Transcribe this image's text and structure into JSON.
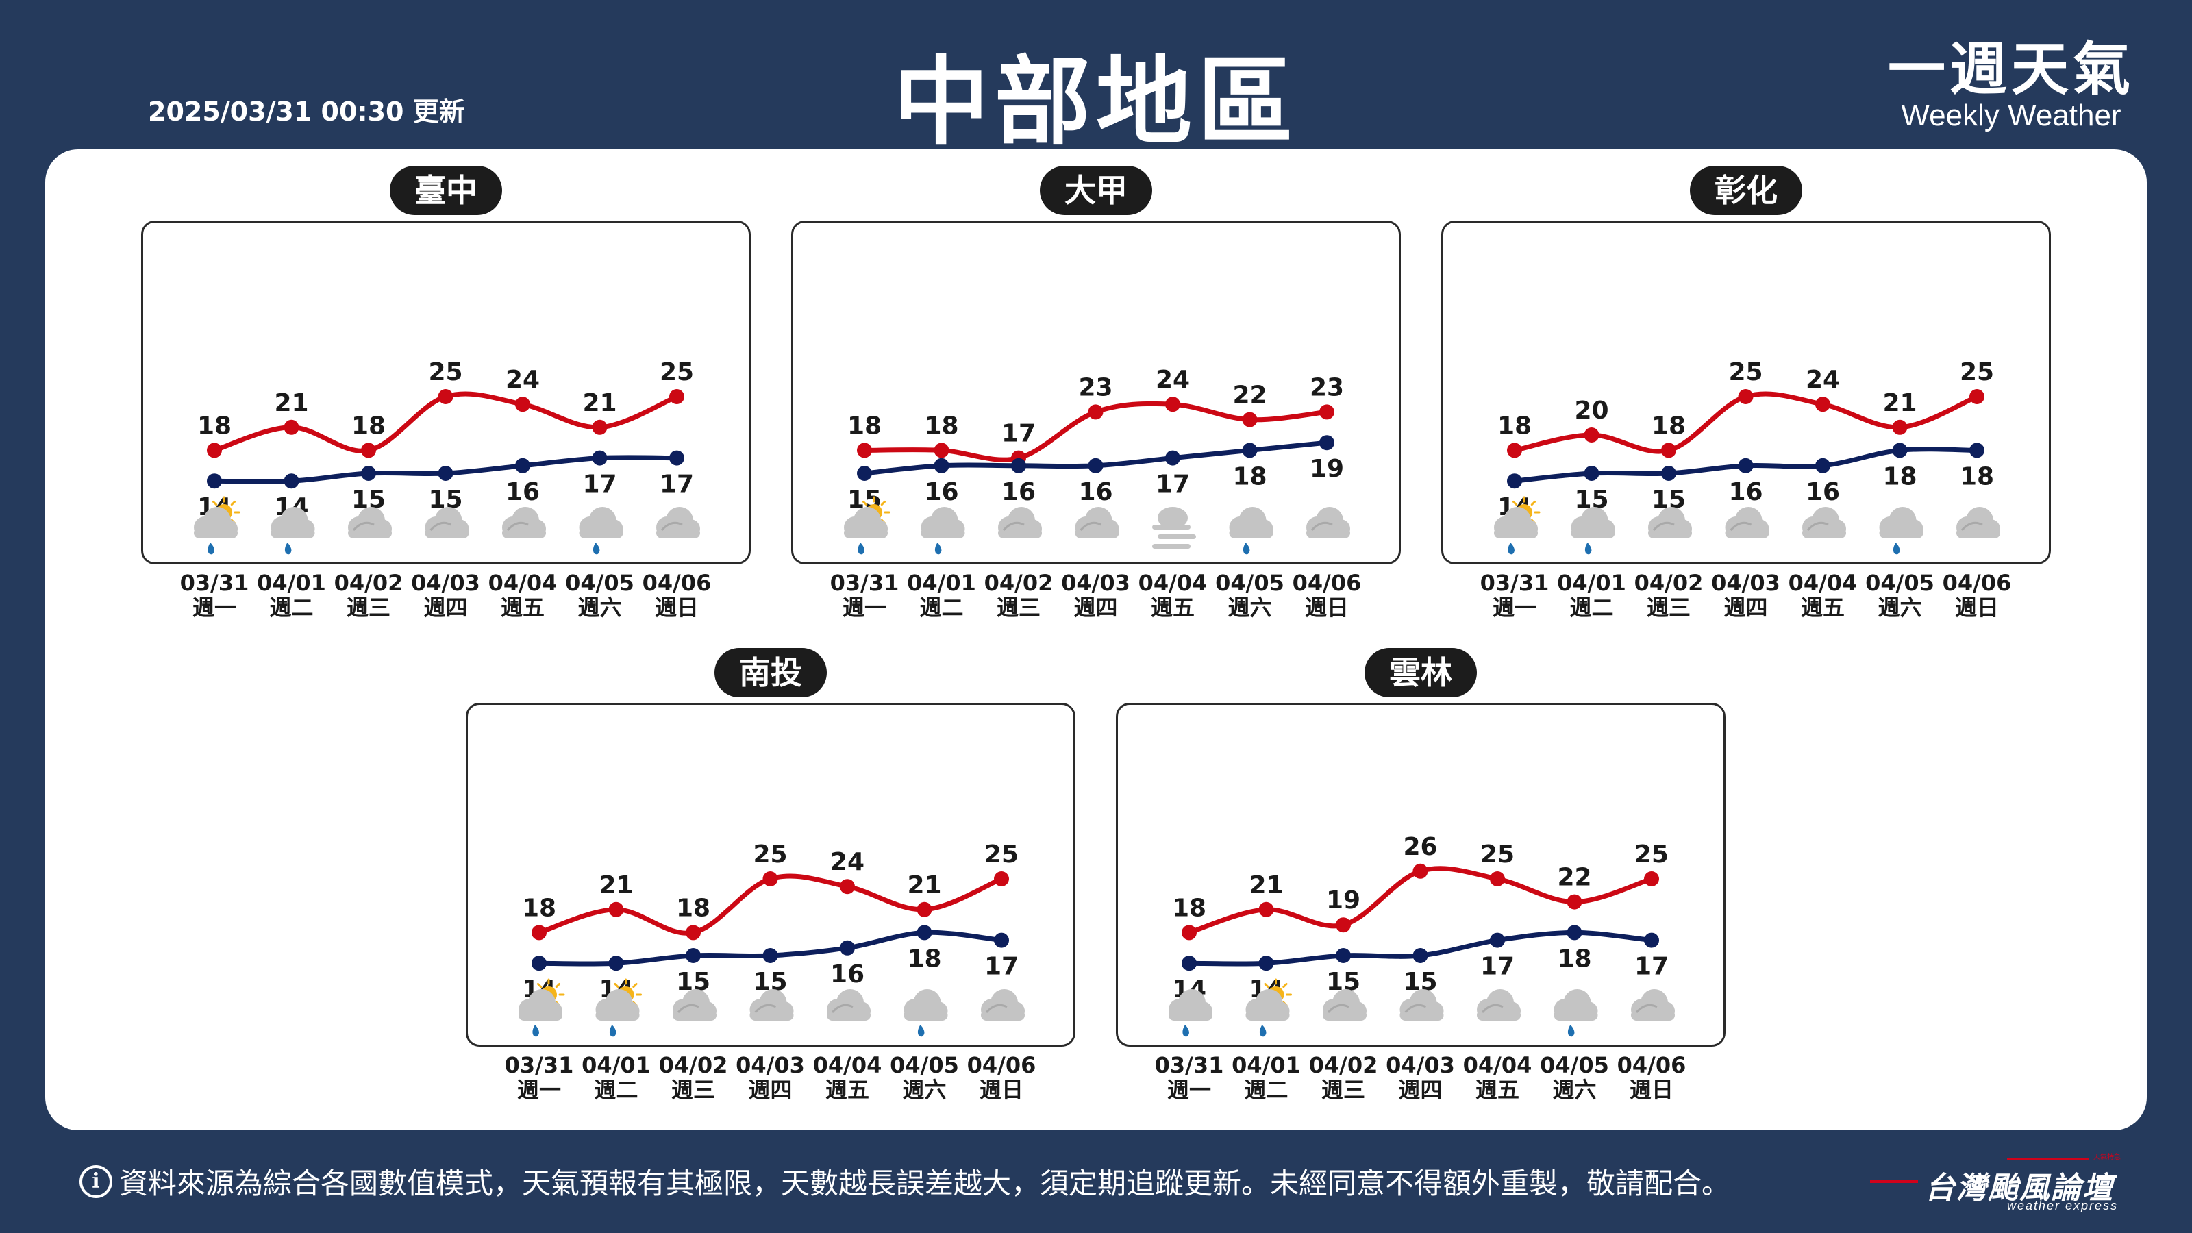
{
  "header": {
    "update_time": "2025/03/31 00:30 更新",
    "title": "中部地區",
    "brand_cn": "一週天氣",
    "brand_en": "Weekly Weather"
  },
  "footer": {
    "info_icon": "i",
    "note": "資料來源為綜合各國數值模式，天氣預報有其極限，天數越長誤差越大，須定期追蹤更新。未經同意不得額外重製，敬請配合。",
    "logo_cn": "台灣颱風論壇",
    "logo_en": "weather express",
    "logo_tag": "天氣特急"
  },
  "colors": {
    "background": "#253a5c",
    "high": "#cc0814",
    "low": "#0d1f5c",
    "label": "#1a1a1a",
    "cloud": "#c4c4c4",
    "sun": "#f5b41a",
    "rain": "#1e6fb0"
  },
  "chart_data": [
    {
      "type": "line",
      "title": "臺中",
      "dates": [
        "03/31",
        "04/01",
        "04/02",
        "04/03",
        "04/04",
        "04/05",
        "04/06"
      ],
      "weekdays": [
        "週一",
        "週二",
        "週三",
        "週四",
        "週五",
        "週六",
        "週日"
      ],
      "series": [
        {
          "values": [
            18,
            21,
            18,
            25,
            24,
            21,
            25
          ]
        },
        {
          "values": [
            14,
            14,
            15,
            15,
            16,
            17,
            17
          ]
        }
      ],
      "icons": [
        "partly-sunny-rain",
        "cloud-rain",
        "cloudy",
        "cloudy",
        "cloudy",
        "cloud-rain",
        "cloudy"
      ]
    },
    {
      "type": "line",
      "title": "大甲",
      "dates": [
        "03/31",
        "04/01",
        "04/02",
        "04/03",
        "04/04",
        "04/05",
        "04/06"
      ],
      "weekdays": [
        "週一",
        "週二",
        "週三",
        "週四",
        "週五",
        "週六",
        "週日"
      ],
      "series": [
        {
          "values": [
            18,
            18,
            17,
            23,
            24,
            22,
            23
          ]
        },
        {
          "values": [
            15,
            16,
            16,
            16,
            17,
            18,
            19
          ]
        }
      ],
      "icons": [
        "partly-sunny-rain",
        "cloud-rain",
        "cloudy",
        "cloudy",
        "fog",
        "cloud-rain",
        "cloudy"
      ]
    },
    {
      "type": "line",
      "title": "彰化",
      "dates": [
        "03/31",
        "04/01",
        "04/02",
        "04/03",
        "04/04",
        "04/05",
        "04/06"
      ],
      "weekdays": [
        "週一",
        "週二",
        "週三",
        "週四",
        "週五",
        "週六",
        "週日"
      ],
      "series": [
        {
          "values": [
            18,
            20,
            18,
            25,
            24,
            21,
            25
          ]
        },
        {
          "values": [
            14,
            15,
            15,
            16,
            16,
            18,
            18
          ]
        }
      ],
      "icons": [
        "partly-sunny-rain",
        "cloud-rain",
        "cloudy",
        "cloudy",
        "cloudy",
        "cloud-rain",
        "cloudy"
      ]
    },
    {
      "type": "line",
      "title": "南投",
      "dates": [
        "03/31",
        "04/01",
        "04/02",
        "04/03",
        "04/04",
        "04/05",
        "04/06"
      ],
      "weekdays": [
        "週一",
        "週二",
        "週三",
        "週四",
        "週五",
        "週六",
        "週日"
      ],
      "series": [
        {
          "values": [
            18,
            21,
            18,
            25,
            24,
            21,
            25
          ]
        },
        {
          "values": [
            14,
            14,
            15,
            15,
            16,
            18,
            17
          ]
        }
      ],
      "icons": [
        "partly-sunny-rain",
        "partly-sunny-rain",
        "cloudy",
        "cloudy",
        "cloudy",
        "cloud-rain",
        "cloudy"
      ]
    },
    {
      "type": "line",
      "title": "雲林",
      "dates": [
        "03/31",
        "04/01",
        "04/02",
        "04/03",
        "04/04",
        "04/05",
        "04/06"
      ],
      "weekdays": [
        "週一",
        "週二",
        "週三",
        "週四",
        "週五",
        "週六",
        "週日"
      ],
      "series": [
        {
          "values": [
            18,
            21,
            19,
            26,
            25,
            22,
            25
          ]
        },
        {
          "values": [
            14,
            14,
            15,
            15,
            17,
            18,
            17
          ]
        }
      ],
      "icons": [
        "cloud-rain",
        "partly-sunny-rain",
        "cloudy",
        "cloudy",
        "cloudy",
        "cloud-rain",
        "cloudy"
      ]
    }
  ]
}
